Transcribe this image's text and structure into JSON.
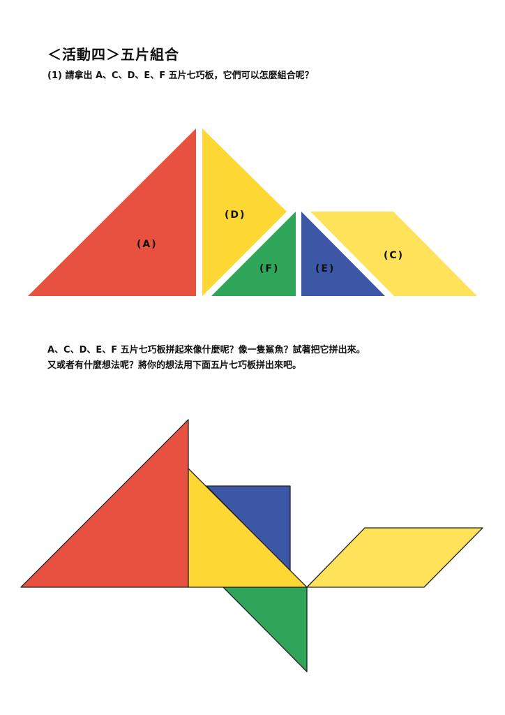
{
  "activity": {
    "title": "＜活動四＞五片組合",
    "question1": "(1) 請拿出 A、C、D、E、F 五片七巧板，它們可以怎麼組合呢？"
  },
  "pieces": {
    "A": {
      "label": "(A)",
      "color": "#e85140"
    },
    "C": {
      "label": "(C)",
      "color": "#fde25a"
    },
    "D": {
      "label": "(D)",
      "color": "#fdd835"
    },
    "E": {
      "label": "(E)",
      "color": "#3b57a6"
    },
    "F": {
      "label": "(F)",
      "color": "#2fa55a"
    }
  },
  "instructions": {
    "line1": "A、C、D、E、F 五片七巧板拼起來像什麼呢？像一隻鯊魚？試著把它拼出來。",
    "line2": "又或者有什麼想法呢？將你的想法用下面五片七巧板拼出來吧。"
  }
}
